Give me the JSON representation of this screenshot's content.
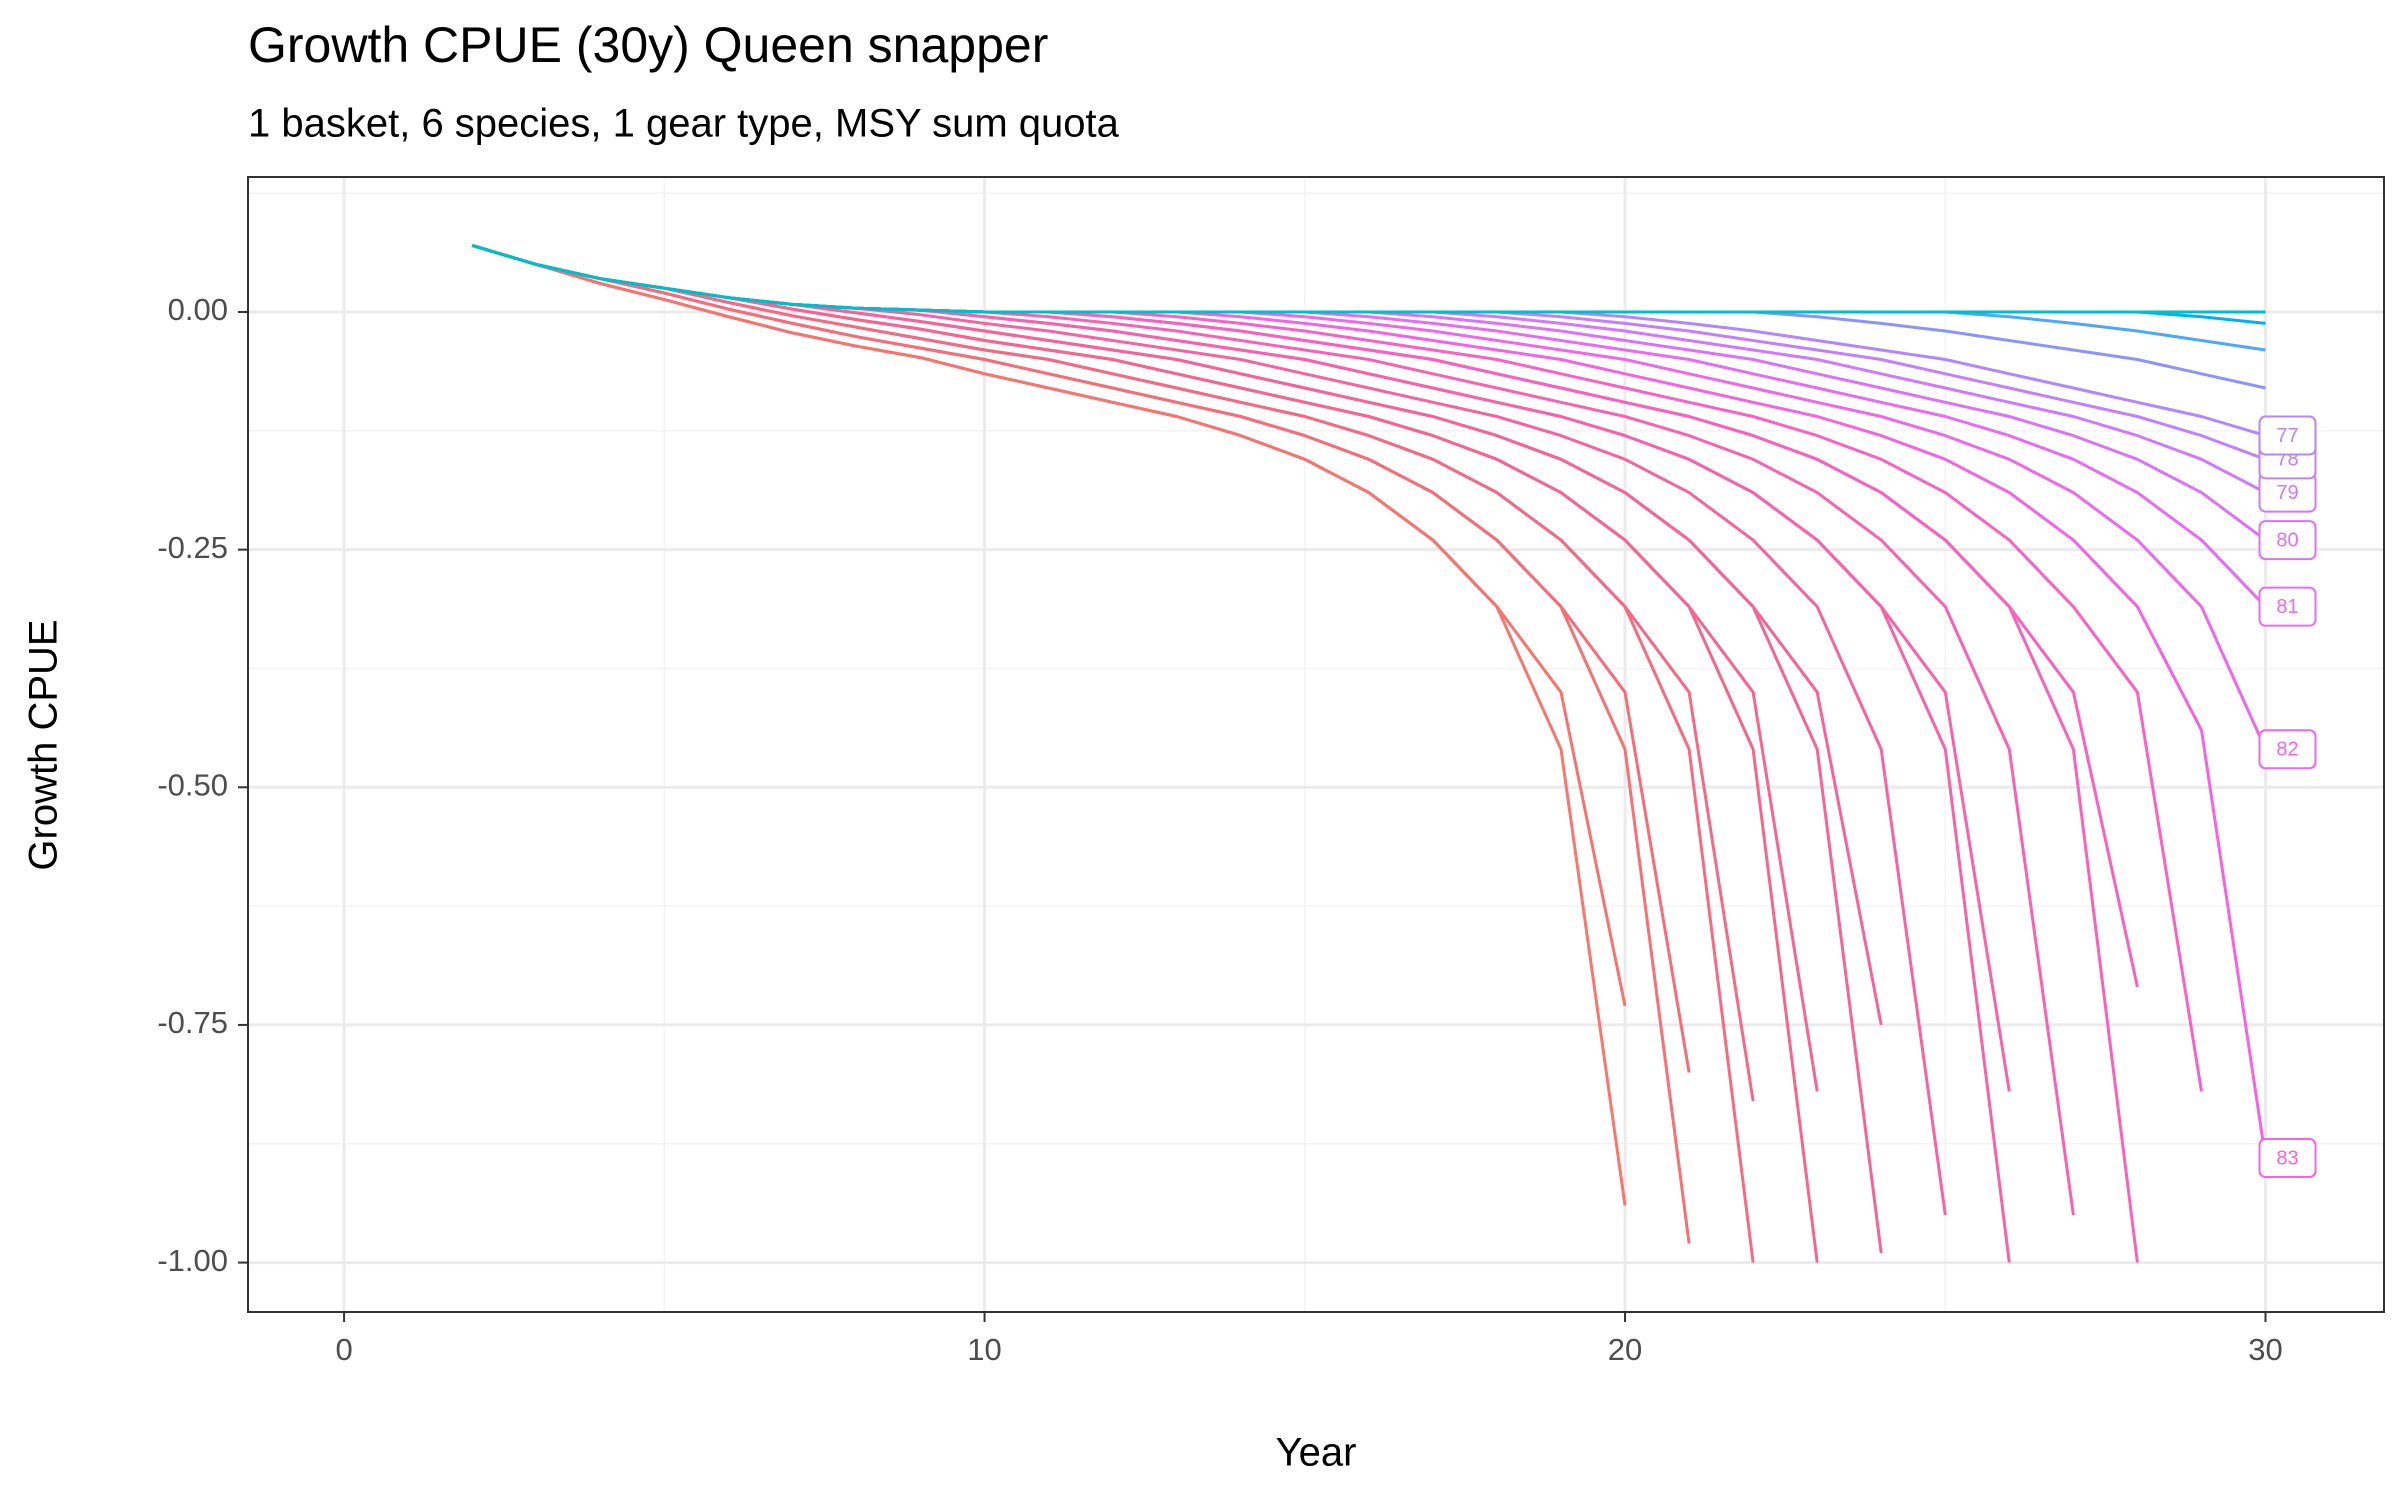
{
  "chart_data": {
    "type": "line",
    "title": "Growth CPUE (30y) Queen snapper",
    "subtitle": "1 basket, 6 species, 1 gear type, MSY sum quota",
    "x_label": "Year",
    "y_label": "Growth CPUE",
    "xlim": [
      -1.5,
      31.85
    ],
    "ylim": [
      -1.052,
      0.142
    ],
    "xticks": [
      0,
      10,
      20,
      30
    ],
    "yticks": [
      {
        "value": 0,
        "label": "0.00"
      },
      {
        "value": -0.25,
        "label": "-0.25"
      },
      {
        "value": -0.5,
        "label": "-0.50"
      },
      {
        "value": -0.75,
        "label": "-0.75"
      },
      {
        "value": -1,
        "label": "-1.00"
      }
    ],
    "minor_xticks": [
      5,
      15,
      25
    ],
    "minor_yticks": [
      0.125,
      -0.125,
      -0.375,
      -0.625,
      -0.875
    ],
    "grid": true,
    "x": [
      2,
      3,
      4,
      5,
      6,
      7,
      8,
      9,
      10,
      11,
      12,
      13,
      14,
      15,
      16,
      17,
      18,
      19,
      20,
      21,
      22,
      23,
      24,
      25,
      26,
      27,
      28,
      29,
      30
    ],
    "series": [
      {
        "color": "#F8766D",
        "values": [
          0.07,
          0.05,
          0.03,
          0.013,
          -0.005,
          -0.022,
          -0.036,
          -0.048,
          -0.065,
          -0.08,
          -0.095,
          -0.11,
          -0.13,
          -0.155,
          -0.19,
          -0.24,
          -0.31,
          -0.46,
          -0.94,
          null,
          null,
          null,
          null,
          null,
          null,
          null,
          null,
          null,
          null
        ]
      },
      {
        "color": "#F7736F",
        "values": [
          0.07,
          0.05,
          0.03,
          0.013,
          -0.005,
          -0.022,
          -0.036,
          -0.048,
          -0.065,
          -0.08,
          -0.095,
          -0.11,
          -0.13,
          -0.155,
          -0.19,
          -0.24,
          -0.31,
          -0.4,
          -0.73,
          null,
          null,
          null,
          null,
          null,
          null,
          null,
          null,
          null,
          null
        ]
      },
      {
        "color": "#F67074",
        "values": [
          0.07,
          0.05,
          0.035,
          0.02,
          0.003,
          -0.012,
          -0.026,
          -0.038,
          -0.05,
          -0.065,
          -0.08,
          -0.095,
          -0.11,
          -0.13,
          -0.155,
          -0.19,
          -0.24,
          -0.31,
          -0.46,
          -0.98,
          null,
          null,
          null,
          null,
          null,
          null,
          null,
          null,
          null
        ]
      },
      {
        "color": "#F66D79",
        "values": [
          0.07,
          0.05,
          0.035,
          0.02,
          0.003,
          -0.012,
          -0.026,
          -0.038,
          -0.05,
          -0.065,
          -0.08,
          -0.095,
          -0.11,
          -0.13,
          -0.155,
          -0.19,
          -0.24,
          -0.31,
          -0.4,
          -0.8,
          null,
          null,
          null,
          null,
          null,
          null,
          null,
          null,
          null
        ]
      },
      {
        "color": "#F56B7F",
        "values": [
          0.07,
          0.05,
          0.035,
          0.025,
          0.01,
          -0.004,
          -0.016,
          -0.028,
          -0.04,
          -0.05,
          -0.065,
          -0.08,
          -0.095,
          -0.11,
          -0.13,
          -0.155,
          -0.19,
          -0.24,
          -0.31,
          -0.46,
          -1.0,
          null,
          null,
          null,
          null,
          null,
          null,
          null,
          null
        ]
      },
      {
        "color": "#F46984",
        "values": [
          0.07,
          0.05,
          0.035,
          0.025,
          0.01,
          -0.004,
          -0.016,
          -0.028,
          -0.04,
          -0.05,
          -0.065,
          -0.08,
          -0.095,
          -0.11,
          -0.13,
          -0.155,
          -0.19,
          -0.24,
          -0.31,
          -0.4,
          -0.83,
          null,
          null,
          null,
          null,
          null,
          null,
          null,
          null
        ]
      },
      {
        "color": "#F5678A",
        "values": [
          0.07,
          0.05,
          0.035,
          0.025,
          0.015,
          0.003,
          -0.008,
          -0.018,
          -0.03,
          -0.04,
          -0.05,
          -0.065,
          -0.08,
          -0.095,
          -0.11,
          -0.13,
          -0.155,
          -0.19,
          -0.24,
          -0.31,
          -0.46,
          -1.0,
          null,
          null,
          null,
          null,
          null,
          null,
          null
        ]
      },
      {
        "color": "#F5658F",
        "values": [
          0.07,
          0.05,
          0.035,
          0.025,
          0.015,
          0.003,
          -0.008,
          -0.018,
          -0.03,
          -0.04,
          -0.05,
          -0.065,
          -0.08,
          -0.095,
          -0.11,
          -0.13,
          -0.155,
          -0.19,
          -0.24,
          -0.31,
          -0.4,
          -0.82,
          null,
          null,
          null,
          null,
          null,
          null,
          null
        ]
      },
      {
        "color": "#F66495",
        "values": [
          0.07,
          0.05,
          0.035,
          0.025,
          0.015,
          0.008,
          -0.001,
          -0.01,
          -0.02,
          -0.03,
          -0.04,
          -0.05,
          -0.065,
          -0.08,
          -0.095,
          -0.11,
          -0.13,
          -0.155,
          -0.19,
          -0.24,
          -0.31,
          -0.46,
          -0.99,
          null,
          null,
          null,
          null,
          null,
          null
        ]
      },
      {
        "color": "#F6639B",
        "values": [
          0.07,
          0.05,
          0.035,
          0.025,
          0.015,
          0.008,
          -0.001,
          -0.01,
          -0.02,
          -0.03,
          -0.04,
          -0.05,
          -0.065,
          -0.08,
          -0.095,
          -0.11,
          -0.13,
          -0.155,
          -0.19,
          -0.24,
          -0.31,
          -0.4,
          -0.75,
          null,
          null,
          null,
          null,
          null,
          null
        ]
      },
      {
        "color": "#F762A1",
        "values": [
          0.07,
          0.05,
          0.035,
          0.025,
          0.015,
          0.008,
          0.004,
          -0.003,
          -0.012,
          -0.02,
          -0.03,
          -0.04,
          -0.05,
          -0.065,
          -0.08,
          -0.095,
          -0.11,
          -0.13,
          -0.155,
          -0.19,
          -0.24,
          -0.31,
          -0.46,
          -0.95,
          null,
          null,
          null,
          null,
          null
        ]
      },
      {
        "color": "#F862A7",
        "values": [
          0.07,
          0.05,
          0.035,
          0.025,
          0.015,
          0.008,
          0.004,
          0.002,
          -0.005,
          -0.012,
          -0.02,
          -0.03,
          -0.04,
          -0.05,
          -0.065,
          -0.08,
          -0.095,
          -0.11,
          -0.13,
          -0.155,
          -0.19,
          -0.24,
          -0.31,
          -0.46,
          -1.0,
          null,
          null,
          null,
          null
        ]
      },
      {
        "color": "#F862AD",
        "values": [
          0.07,
          0.05,
          0.035,
          0.025,
          0.015,
          0.008,
          0.004,
          0.002,
          -0.005,
          -0.012,
          -0.02,
          -0.03,
          -0.04,
          -0.05,
          -0.065,
          -0.08,
          -0.095,
          -0.11,
          -0.13,
          -0.155,
          -0.19,
          -0.24,
          -0.31,
          -0.4,
          -0.82,
          null,
          null,
          null,
          null
        ]
      },
      {
        "color": "#F962B3",
        "values": [
          0.07,
          0.05,
          0.035,
          0.025,
          0.015,
          0.008,
          0.004,
          0.002,
          0,
          -0.005,
          -0.012,
          -0.02,
          -0.03,
          -0.04,
          -0.05,
          -0.065,
          -0.08,
          -0.095,
          -0.11,
          -0.13,
          -0.155,
          -0.19,
          -0.24,
          -0.31,
          -0.46,
          -0.95,
          null,
          null,
          null
        ]
      },
      {
        "color": "#F962B9",
        "values": [
          0.07,
          0.05,
          0.035,
          0.025,
          0.015,
          0.008,
          0.004,
          0.002,
          0,
          0,
          -0.005,
          -0.012,
          -0.02,
          -0.03,
          -0.04,
          -0.05,
          -0.065,
          -0.08,
          -0.095,
          -0.11,
          -0.13,
          -0.155,
          -0.19,
          -0.24,
          -0.31,
          -0.46,
          -1.0,
          null,
          null
        ]
      },
      {
        "color": "#FA61BF",
        "values": [
          0.07,
          0.05,
          0.035,
          0.025,
          0.015,
          0.008,
          0.004,
          0.002,
          0,
          0,
          -0.005,
          -0.012,
          -0.02,
          -0.03,
          -0.04,
          -0.05,
          -0.065,
          -0.08,
          -0.095,
          -0.11,
          -0.13,
          -0.155,
          -0.19,
          -0.24,
          -0.31,
          -0.4,
          -0.71,
          null,
          null
        ]
      },
      {
        "color": "#FA61C5",
        "values": [
          0.07,
          0.05,
          0.035,
          0.025,
          0.015,
          0.008,
          0.004,
          0.002,
          0,
          0,
          0,
          -0.005,
          -0.012,
          -0.02,
          -0.03,
          -0.04,
          -0.05,
          -0.065,
          -0.08,
          -0.095,
          -0.11,
          -0.13,
          -0.155,
          -0.19,
          -0.24,
          -0.31,
          -0.4,
          -0.82,
          null
        ]
      },
      {
        "name": "83",
        "color": "#F563E3",
        "values": [
          0.07,
          0.05,
          0.035,
          0.025,
          0.015,
          0.008,
          0.004,
          0.002,
          0,
          0,
          0,
          0,
          -0.005,
          -0.012,
          -0.02,
          -0.03,
          -0.04,
          -0.05,
          -0.065,
          -0.08,
          -0.095,
          -0.11,
          -0.13,
          -0.155,
          -0.19,
          -0.24,
          -0.31,
          -0.44,
          -0.89
        ]
      },
      {
        "name": "82",
        "color": "#EF67EB",
        "values": [
          0.07,
          0.05,
          0.035,
          0.025,
          0.015,
          0.008,
          0.004,
          0.002,
          0,
          0,
          0,
          0,
          0,
          -0.005,
          -0.012,
          -0.02,
          -0.03,
          -0.04,
          -0.05,
          -0.065,
          -0.08,
          -0.095,
          -0.11,
          -0.13,
          -0.155,
          -0.19,
          -0.24,
          -0.31,
          -0.46
        ]
      },
      {
        "name": "81",
        "color": "#E76BF3",
        "values": [
          0.07,
          0.05,
          0.035,
          0.025,
          0.015,
          0.008,
          0.004,
          0.002,
          0,
          0,
          0,
          0,
          0,
          0,
          -0.005,
          -0.012,
          -0.02,
          -0.03,
          -0.04,
          -0.05,
          -0.065,
          -0.08,
          -0.095,
          -0.11,
          -0.13,
          -0.155,
          -0.19,
          -0.24,
          -0.31
        ]
      },
      {
        "name": "80",
        "color": "#DC71FA",
        "values": [
          0.07,
          0.05,
          0.035,
          0.025,
          0.015,
          0.008,
          0.004,
          0.002,
          0,
          0,
          0,
          0,
          0,
          0,
          0,
          -0.005,
          -0.012,
          -0.02,
          -0.03,
          -0.04,
          -0.05,
          -0.065,
          -0.08,
          -0.095,
          -0.11,
          -0.13,
          -0.155,
          -0.19,
          -0.24
        ]
      },
      {
        "name": "79",
        "color": "#D078FF",
        "values": [
          0.07,
          0.05,
          0.035,
          0.025,
          0.015,
          0.008,
          0.004,
          0.002,
          0,
          0,
          0,
          0,
          0,
          0,
          0,
          0,
          -0.005,
          -0.012,
          -0.02,
          -0.03,
          -0.04,
          -0.05,
          -0.065,
          -0.08,
          -0.095,
          -0.11,
          -0.13,
          -0.155,
          -0.19
        ]
      },
      {
        "name": "78",
        "color": "#C27FFF",
        "values": [
          0.07,
          0.05,
          0.035,
          0.025,
          0.015,
          0.008,
          0.004,
          0.002,
          0,
          0,
          0,
          0,
          0,
          0,
          0,
          0,
          0,
          -0.005,
          -0.012,
          -0.02,
          -0.03,
          -0.04,
          -0.05,
          -0.065,
          -0.08,
          -0.095,
          -0.11,
          -0.13,
          -0.155
        ]
      },
      {
        "name": "77",
        "color": "#B385FF",
        "values": [
          0.07,
          0.05,
          0.035,
          0.025,
          0.015,
          0.008,
          0.004,
          0.002,
          0,
          0,
          0,
          0,
          0,
          0,
          0,
          0,
          0,
          0,
          -0.005,
          -0.012,
          -0.02,
          -0.03,
          -0.04,
          -0.05,
          -0.065,
          -0.08,
          -0.095,
          -0.11,
          -0.13
        ]
      },
      {
        "color": "#8A94FF",
        "values": [
          0.07,
          0.05,
          0.035,
          0.025,
          0.015,
          0.008,
          0.004,
          0.002,
          0,
          0,
          0,
          0,
          0,
          0,
          0,
          0,
          0,
          0,
          0,
          0,
          0,
          -0.005,
          -0.012,
          -0.02,
          -0.03,
          -0.04,
          -0.05,
          -0.065,
          -0.08
        ]
      },
      {
        "color": "#4AA8FF",
        "values": [
          0.07,
          0.05,
          0.035,
          0.025,
          0.015,
          0.008,
          0.004,
          0.002,
          0,
          0,
          0,
          0,
          0,
          0,
          0,
          0,
          0,
          0,
          0,
          0,
          0,
          0,
          0,
          0,
          -0.005,
          -0.012,
          -0.02,
          -0.03,
          -0.04
        ]
      },
      {
        "color": "#00B0F6",
        "values": [
          0.07,
          0.05,
          0.035,
          0.025,
          0.015,
          0.008,
          0.004,
          0.002,
          0,
          0,
          0,
          0,
          0,
          0,
          0,
          0,
          0,
          0,
          0,
          0,
          0,
          0,
          0,
          0,
          0,
          0,
          0,
          -0.005,
          -0.012
        ]
      },
      {
        "color": "#00BFC4",
        "values": [
          0.07,
          0.05,
          0.035,
          0.025,
          0.015,
          0.008,
          0.004,
          0.002,
          0,
          0,
          0,
          0,
          0,
          0,
          0,
          0,
          0,
          0,
          0,
          0,
          0,
          0,
          0,
          0,
          0,
          0,
          0,
          0,
          0
        ]
      }
    ]
  }
}
